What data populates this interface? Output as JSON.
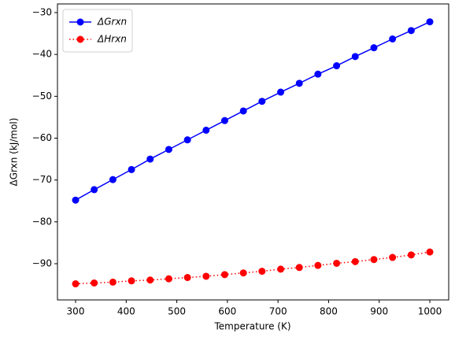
{
  "chart_data": {
    "type": "line",
    "xlabel": "Temperature (K)",
    "ylabel": "ΔGrxn (kJ/mol)",
    "x": [
      300,
      336.8,
      373.7,
      410.5,
      447.4,
      484.2,
      521.1,
      557.9,
      594.7,
      631.6,
      668.4,
      705.3,
      742.1,
      778.9,
      815.8,
      852.6,
      889.5,
      926.3,
      963.2,
      1000
    ],
    "series": [
      {
        "name": "ΔGrxn",
        "color": "#0000ff",
        "linestyle": "solid",
        "values": [
          -74.8,
          -72.3,
          -69.9,
          -67.5,
          -65.0,
          -62.7,
          -60.4,
          -58.1,
          -55.8,
          -53.5,
          -51.2,
          -49.0,
          -46.9,
          -44.7,
          -42.7,
          -40.5,
          -38.4,
          -36.3,
          -34.3,
          -32.2
        ]
      },
      {
        "name": "ΔHrxn",
        "color": "#ff0000",
        "linestyle": "dotted",
        "values": [
          -94.8,
          -94.6,
          -94.4,
          -94.1,
          -93.9,
          -93.6,
          -93.3,
          -93.0,
          -92.6,
          -92.2,
          -91.8,
          -91.3,
          -90.9,
          -90.4,
          -89.9,
          -89.5,
          -89.0,
          -88.5,
          -87.9,
          -87.2
        ]
      }
    ],
    "xlim": [
      264.2,
      1037.3
    ],
    "xticks": [
      300,
      400,
      500,
      600,
      700,
      800,
      900,
      1000
    ],
    "ylim": [
      -98.65,
      -27.93
    ],
    "yticks": [
      {
        "value": -90,
        "label": "−90"
      },
      {
        "value": -80,
        "label": "−80"
      },
      {
        "value": -70,
        "label": "−70"
      },
      {
        "value": -60,
        "label": "−60"
      },
      {
        "value": -50,
        "label": "−50"
      },
      {
        "value": -40,
        "label": "−40"
      },
      {
        "value": -30,
        "label": "−30"
      }
    ],
    "legend": "upper left",
    "grid": false
  }
}
